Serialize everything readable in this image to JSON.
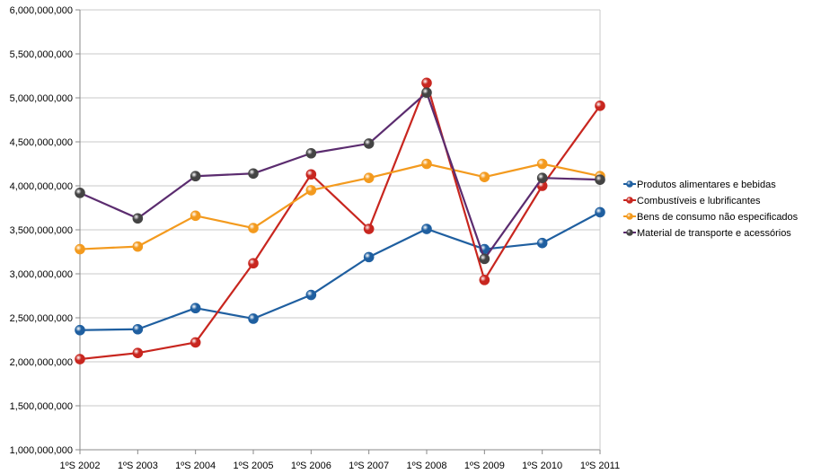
{
  "chart_data": {
    "type": "line",
    "title": "",
    "xlabel": "",
    "ylabel": "",
    "categories": [
      "1ºS 2002",
      "1ºS 2003",
      "1ºS 2004",
      "1ºS 2005",
      "1ºS 2006",
      "1ºS 2007",
      "1ºS 2008",
      "1ºS 2009",
      "1ºS 2010",
      "1ºS 2011"
    ],
    "ylim": [
      1000000000,
      6000000000
    ],
    "y_ticks": [
      1000000000,
      1500000000,
      2000000000,
      2500000000,
      3000000000,
      3500000000,
      4000000000,
      4500000000,
      5000000000,
      5500000000,
      6000000000
    ],
    "y_tick_labels": [
      "1,000,000,000",
      "1,500,000,000",
      "2,000,000,000",
      "2,500,000,000",
      "3,000,000,000",
      "3,500,000,000",
      "4,000,000,000",
      "4,500,000,000",
      "5,000,000,000",
      "5,500,000,000",
      "6,000,000,000"
    ],
    "grid": "horizontal",
    "legend_position": "right",
    "series": [
      {
        "name": "Produtos alimentares e bebidas",
        "color": "#1f5fa0",
        "values": [
          2360000000,
          2370000000,
          2610000000,
          2490000000,
          2760000000,
          3190000000,
          3510000000,
          3280000000,
          3350000000,
          3700000000
        ]
      },
      {
        "name": "Combustíveis e lubrificantes",
        "color": "#c8261f",
        "values": [
          2030000000,
          2100000000,
          2220000000,
          3120000000,
          4130000000,
          3510000000,
          5170000000,
          2930000000,
          4000000000,
          4910000000
        ]
      },
      {
        "name": "Bens de consumo não especificados",
        "color": "#f39a1e",
        "values": [
          3280000000,
          3310000000,
          3660000000,
          3520000000,
          3950000000,
          4090000000,
          4250000000,
          4100000000,
          4250000000,
          4110000000
        ]
      },
      {
        "name": "Material de transporte e acessórios",
        "color": "#5b2c6f",
        "marker_color": "#444444",
        "values": [
          3920000000,
          3630000000,
          4110000000,
          4140000000,
          4370000000,
          4480000000,
          5060000000,
          3170000000,
          4090000000,
          4070000000
        ]
      }
    ]
  }
}
